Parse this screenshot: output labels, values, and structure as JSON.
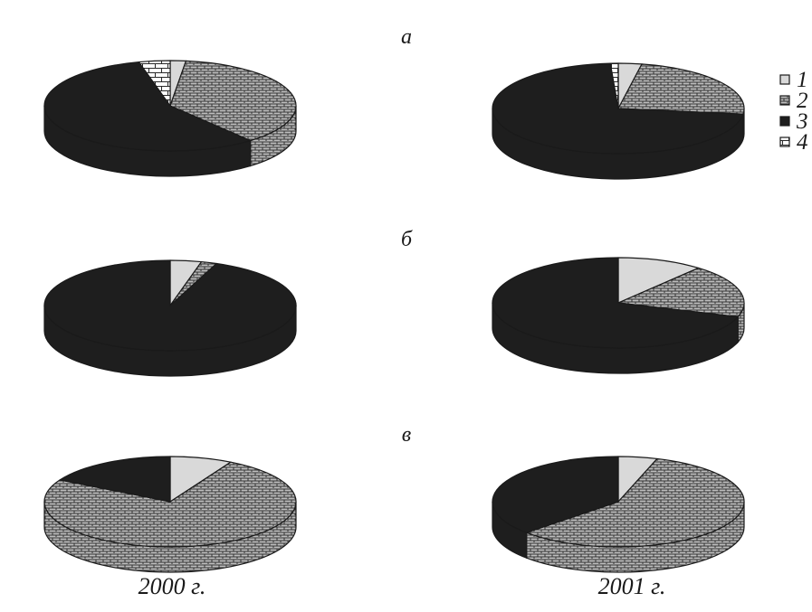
{
  "legend": {
    "items": [
      {
        "label": "1",
        "pattern": "light"
      },
      {
        "label": "2",
        "pattern": "weave"
      },
      {
        "label": "3",
        "pattern": "dark"
      },
      {
        "label": "4",
        "pattern": "bricks"
      }
    ]
  },
  "colors": {
    "dark": "#1e1e1e",
    "light": "#d9d9d9",
    "ink": "#1a1a1a"
  },
  "chart_data": [
    {
      "type": "pie",
      "panel": "a",
      "panel_label": "а",
      "year": "2000 г.",
      "slices": [
        {
          "category": "1",
          "value": 2
        },
        {
          "category": "2",
          "value": 37
        },
        {
          "category": "3",
          "value": 57
        },
        {
          "category": "4",
          "value": 4
        }
      ]
    },
    {
      "type": "pie",
      "panel": "a",
      "panel_label": "а",
      "year": "2001 г.",
      "slices": [
        {
          "category": "1",
          "value": 3
        },
        {
          "category": "2",
          "value": 24
        },
        {
          "category": "3",
          "value": 72
        },
        {
          "category": "4",
          "value": 1
        }
      ]
    },
    {
      "type": "pie",
      "panel": "b",
      "panel_label": "б",
      "year": "2000 г.",
      "slices": [
        {
          "category": "1",
          "value": 4
        },
        {
          "category": "2",
          "value": 2
        },
        {
          "category": "3",
          "value": 94
        },
        {
          "category": "4",
          "value": 0
        }
      ]
    },
    {
      "type": "pie",
      "panel": "b",
      "panel_label": "б",
      "year": "2001 г.",
      "slices": [
        {
          "category": "1",
          "value": 11
        },
        {
          "category": "2",
          "value": 19
        },
        {
          "category": "3",
          "value": 70
        },
        {
          "category": "4",
          "value": 0
        }
      ]
    },
    {
      "type": "pie",
      "panel": "v",
      "panel_label": "в",
      "year": "2000 г.",
      "slices": [
        {
          "category": "1",
          "value": 8
        },
        {
          "category": "2",
          "value": 75
        },
        {
          "category": "3",
          "value": 17
        },
        {
          "category": "4",
          "value": 0
        }
      ]
    },
    {
      "type": "pie",
      "panel": "v",
      "panel_label": "в",
      "year": "2001 г.",
      "slices": [
        {
          "category": "1",
          "value": 5
        },
        {
          "category": "2",
          "value": 58
        },
        {
          "category": "3",
          "value": 37
        },
        {
          "category": "4",
          "value": 0
        }
      ]
    }
  ]
}
